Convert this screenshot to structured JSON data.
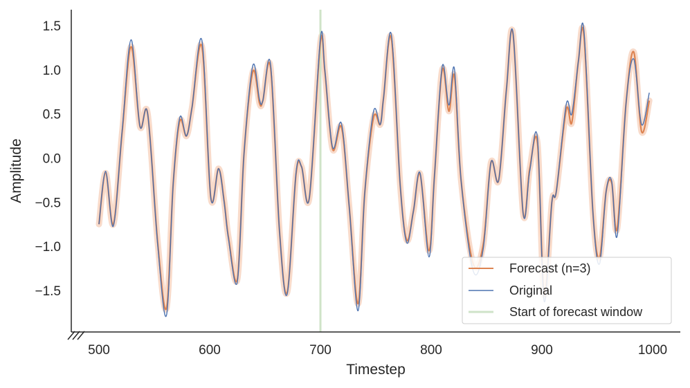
{
  "chart_data": {
    "type": "line",
    "xlabel": "Timestep",
    "ylabel": "Amplitude",
    "xlim": [
      475,
      1025
    ],
    "ylim": [
      -1.97,
      1.68
    ],
    "xticks": [
      500,
      600,
      700,
      800,
      900,
      1000
    ],
    "yticks": [
      -1.5,
      -1.0,
      -0.5,
      0.0,
      0.5,
      1.0,
      1.5
    ],
    "xtick_labels": [
      "500",
      "600",
      "700",
      "800",
      "900",
      "1000"
    ],
    "ytick_labels": [
      "−1.5",
      "−1.0",
      "−0.5",
      "0.0",
      "0.5",
      "1.0",
      "1.5"
    ],
    "grid": false,
    "legend_position": "lower-right",
    "forecast_start": 700,
    "colors": {
      "forecast": "#dd8452",
      "forecast_band": "#f4c3a8",
      "original": "#4c72b0",
      "start_line": "#cfe3c8"
    },
    "series": [
      {
        "name": "Forecast (n=3)",
        "x": [
          500,
          506,
          513,
          521,
          529,
          537,
          544,
          553,
          561,
          567,
          573,
          579,
          584,
          593,
          601,
          608,
          613,
          617,
          625,
          631,
          639,
          645,
          648,
          655,
          663,
          670,
          678,
          683,
          690,
          700,
          704,
          711,
          719,
          726,
          734,
          740,
          748,
          754,
          757,
          764,
          772,
          778,
          784,
          790,
          798,
          803,
          810,
          816,
          821,
          827,
          838,
          847,
          854,
          861,
          868,
          874,
          883,
          889,
          896,
          902,
          909,
          913,
          922,
          927,
          933,
          938,
          946,
          952,
          958,
          963,
          968,
          976,
          983,
          990,
          997
        ],
        "y": [
          -0.75,
          -0.17,
          -0.75,
          0.3,
          1.26,
          0.36,
          0.5,
          -0.95,
          -1.7,
          -0.3,
          0.42,
          0.25,
          0.57,
          1.26,
          -0.45,
          -0.12,
          -0.48,
          -0.9,
          -1.37,
          0.05,
          0.98,
          0.62,
          0.65,
          1.02,
          -0.82,
          -1.52,
          -0.18,
          -0.1,
          -0.45,
          1.31,
          0.98,
          0.1,
          0.35,
          -0.55,
          -1.65,
          -0.4,
          0.46,
          0.38,
          0.68,
          1.36,
          -0.3,
          -0.93,
          -0.6,
          -0.18,
          -1.05,
          -0.2,
          1.0,
          0.53,
          0.93,
          -0.25,
          -1.2,
          -0.98,
          -0.05,
          -0.25,
          0.78,
          1.4,
          -0.62,
          -0.12,
          0.17,
          -1.55,
          -0.5,
          -0.38,
          0.55,
          0.4,
          1.1,
          1.38,
          -0.6,
          -1.13,
          -0.38,
          -0.28,
          -0.8,
          0.62,
          1.2,
          0.3,
          0.65
        ]
      },
      {
        "name": "Original",
        "x": [
          500,
          506,
          513,
          521,
          529,
          537,
          544,
          553,
          561,
          567,
          573,
          579,
          584,
          593,
          601,
          608,
          613,
          617,
          625,
          631,
          639,
          645,
          648,
          655,
          663,
          670,
          678,
          683,
          690,
          700,
          704,
          711,
          719,
          726,
          734,
          740,
          748,
          754,
          757,
          764,
          772,
          778,
          784,
          790,
          798,
          803,
          810,
          816,
          821,
          827,
          838,
          847,
          854,
          861,
          868,
          874,
          883,
          889,
          896,
          902,
          909,
          913,
          922,
          927,
          933,
          938,
          946,
          952,
          958,
          963,
          968,
          976,
          983,
          990,
          997
        ],
        "y": [
          -0.75,
          -0.15,
          -0.77,
          0.32,
          1.34,
          0.36,
          0.5,
          -0.98,
          -1.78,
          -0.3,
          0.46,
          0.25,
          0.57,
          1.33,
          -0.45,
          -0.12,
          -0.5,
          -0.92,
          -1.4,
          0.05,
          1.05,
          0.66,
          0.65,
          1.06,
          -0.82,
          -1.54,
          -0.16,
          -0.1,
          -0.45,
          1.36,
          1.0,
          0.12,
          0.39,
          -0.55,
          -1.73,
          -0.4,
          0.53,
          0.38,
          0.68,
          1.4,
          -0.3,
          -0.96,
          -0.6,
          -0.17,
          -1.12,
          -0.2,
          1.04,
          0.6,
          1.01,
          -0.25,
          -1.28,
          -1.03,
          -0.05,
          -0.25,
          0.78,
          1.41,
          -0.62,
          -0.15,
          0.23,
          -1.62,
          -0.5,
          -0.38,
          0.61,
          0.5,
          1.1,
          1.44,
          -0.6,
          -1.2,
          -0.38,
          -0.26,
          -0.88,
          0.62,
          1.12,
          0.38,
          0.74
        ]
      }
    ],
    "legend": {
      "forecast_label": "Forecast (n=3)",
      "original_label": "Original",
      "start_label": "Start of forecast window"
    }
  }
}
